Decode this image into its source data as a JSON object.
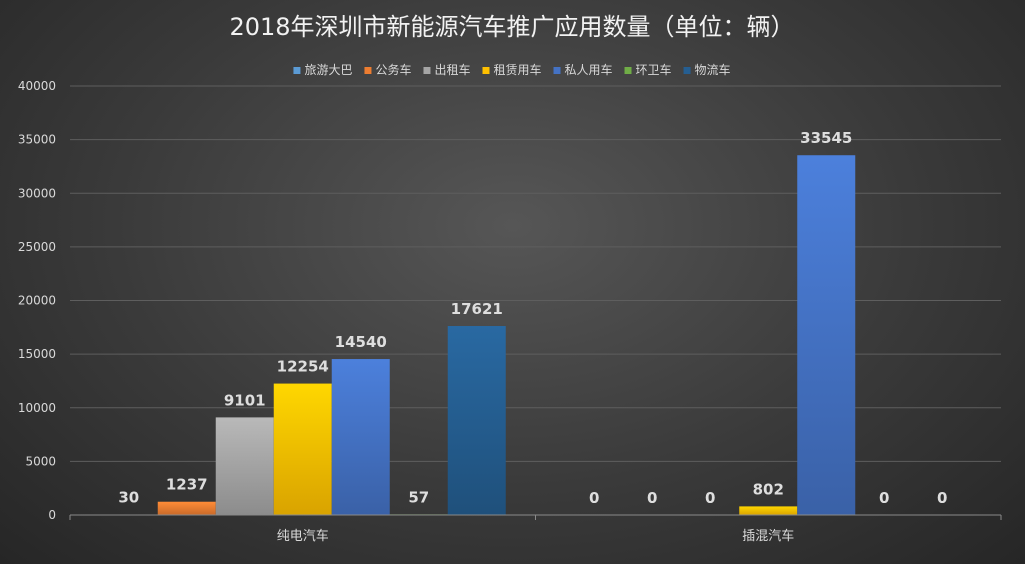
{
  "chart_data": {
    "type": "bar",
    "title": "2018年深圳市新能源汽车推广应用数量（单位：辆）",
    "categories": [
      "纯电汽车",
      "插混汽车"
    ],
    "series": [
      {
        "name": "旅游大巴",
        "values": [
          30,
          0
        ],
        "color": "#5b9bd5"
      },
      {
        "name": "公务车",
        "values": [
          1237,
          0
        ],
        "color": "#ed7d31"
      },
      {
        "name": "出租车",
        "values": [
          9101,
          0
        ],
        "color": "#a5a5a5"
      },
      {
        "name": "租赁用车",
        "values": [
          12254,
          802
        ],
        "color": "#ffc000"
      },
      {
        "name": "私人用车",
        "values": [
          14540,
          33545
        ],
        "color": "#4472c4"
      },
      {
        "name": "环卫车",
        "values": [
          57,
          0
        ],
        "color": "#70ad47"
      },
      {
        "name": "物流车",
        "values": [
          17621,
          0
        ],
        "color": "#255e91"
      }
    ],
    "ylim": [
      0,
      40000
    ],
    "yticks": [
      0,
      5000,
      10000,
      15000,
      20000,
      25000,
      30000,
      35000,
      40000
    ],
    "legend_position": "top",
    "grid": true
  }
}
